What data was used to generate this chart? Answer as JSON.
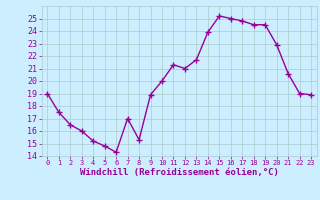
{
  "x": [
    0,
    1,
    2,
    3,
    4,
    5,
    6,
    7,
    8,
    9,
    10,
    11,
    12,
    13,
    14,
    15,
    16,
    17,
    18,
    19,
    20,
    21,
    22,
    23
  ],
  "y": [
    19,
    17.5,
    16.5,
    16,
    15.2,
    14.8,
    14.3,
    17,
    15.3,
    18.9,
    20,
    21.3,
    21,
    21.7,
    23.9,
    25.2,
    25,
    24.8,
    24.5,
    24.5,
    22.9,
    20.6,
    19,
    18.9
  ],
  "line_color": "#990099",
  "marker": "+",
  "marker_size": 4,
  "linewidth": 1.0,
  "xlabel": "Windchill (Refroidissement éolien,°C)",
  "xlabel_fontsize": 6.5,
  "bg_color": "#cceeff",
  "grid_color": "#aacccc",
  "tick_color": "#990099",
  "label_color": "#990099",
  "ylim": [
    14,
    26
  ],
  "xlim": [
    -0.5,
    23.5
  ],
  "yticks": [
    14,
    15,
    16,
    17,
    18,
    19,
    20,
    21,
    22,
    23,
    24,
    25
  ],
  "xticks": [
    0,
    1,
    2,
    3,
    4,
    5,
    6,
    7,
    8,
    9,
    10,
    11,
    12,
    13,
    14,
    15,
    16,
    17,
    18,
    19,
    20,
    21,
    22,
    23
  ],
  "ytick_fontsize": 6,
  "xtick_fontsize": 5
}
